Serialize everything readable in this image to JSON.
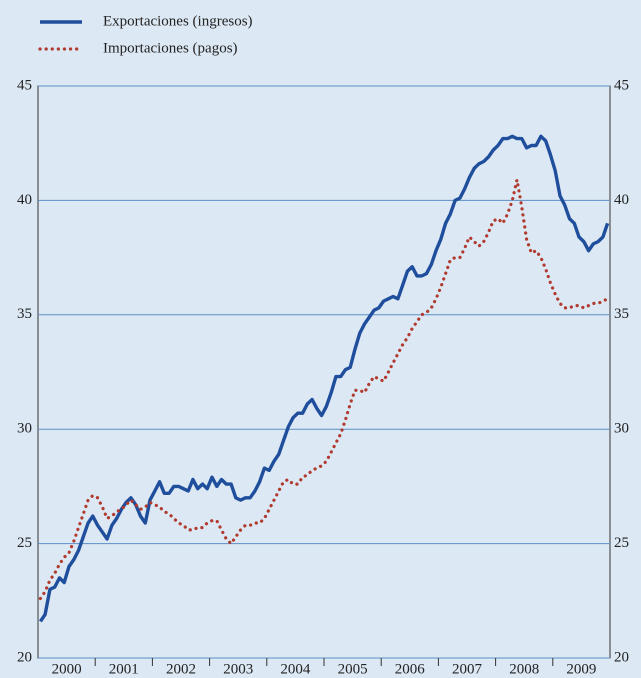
{
  "chart_data": {
    "type": "line",
    "categories": [
      "2000",
      "2001",
      "2002",
      "2003",
      "2004",
      "2005",
      "2006",
      "2007",
      "2008",
      "2009"
    ],
    "series": [
      {
        "name": "Exportaciones (ingresos)",
        "color": "#1f4e9c",
        "style": "solid",
        "values": [
          [
            21.6,
            21.9,
            23.0,
            23.1,
            23.5,
            23.3,
            24.0,
            24.3,
            24.7,
            25.3,
            25.9,
            26.2
          ],
          [
            25.8,
            25.5,
            25.2,
            25.8,
            26.1,
            26.5,
            26.8,
            27.0,
            26.7,
            26.2,
            25.9,
            26.9
          ],
          [
            27.3,
            27.7,
            27.2,
            27.2,
            27.5,
            27.5,
            27.4,
            27.3,
            27.8,
            27.4,
            27.6,
            27.4
          ],
          [
            27.9,
            27.5,
            27.8,
            27.6,
            27.6,
            27.0,
            26.9,
            27.0,
            27.0,
            27.3,
            27.7,
            28.3
          ],
          [
            28.2,
            28.6,
            28.9,
            29.5,
            30.1,
            30.5,
            30.7,
            30.7,
            31.1,
            31.3,
            30.9,
            30.6
          ],
          [
            31.0,
            31.6,
            32.3,
            32.3,
            32.6,
            32.7,
            33.5,
            34.2,
            34.6,
            34.9,
            35.2,
            35.3
          ],
          [
            35.6,
            35.7,
            35.8,
            35.7,
            36.3,
            36.9,
            37.1,
            36.7,
            36.7,
            36.8,
            37.2,
            37.8
          ],
          [
            38.3,
            39.0,
            39.4,
            40.0,
            40.1,
            40.5,
            41.0,
            41.4,
            41.6,
            41.7,
            41.9,
            42.2
          ],
          [
            42.4,
            42.7,
            42.7,
            42.8,
            42.7,
            42.7,
            42.3,
            42.4,
            42.4,
            42.8,
            42.6,
            42.0
          ],
          [
            41.3,
            40.2,
            39.8,
            39.2,
            39.0,
            38.4,
            38.2,
            37.8,
            38.1,
            38.2,
            38.4,
            39.0
          ]
        ]
      },
      {
        "name": "Importaciones (pagos)",
        "color": "#b03a2e",
        "style": "dotted",
        "values": [
          [
            22.6,
            22.9,
            23.4,
            23.7,
            24.1,
            24.4,
            24.6,
            25.1,
            25.7,
            26.3,
            26.9,
            27.1
          ],
          [
            27.0,
            26.6,
            26.1,
            26.2,
            26.4,
            26.5,
            26.7,
            26.9,
            26.7,
            26.5,
            26.6,
            26.8
          ],
          [
            26.7,
            26.6,
            26.4,
            26.3,
            26.1,
            25.9,
            25.8,
            25.6,
            25.6,
            25.7,
            25.7,
            25.9
          ],
          [
            26.0,
            26.0,
            25.6,
            25.2,
            25.0,
            25.3,
            25.6,
            25.8,
            25.8,
            25.9,
            25.9,
            26.1
          ],
          [
            26.5,
            26.9,
            27.3,
            27.7,
            27.8,
            27.6,
            27.6,
            27.9,
            28.0,
            28.2,
            28.3,
            28.4
          ],
          [
            28.6,
            29.0,
            29.4,
            29.8,
            30.4,
            31.1,
            31.7,
            31.7,
            31.6,
            32.0,
            32.3,
            32.2
          ],
          [
            32.1,
            32.5,
            32.9,
            33.3,
            33.7,
            34.0,
            34.4,
            34.7,
            35.0,
            35.1,
            35.3,
            35.7
          ],
          [
            36.2,
            36.8,
            37.4,
            37.5,
            37.5,
            37.9,
            38.4,
            38.2,
            38.0,
            38.2,
            38.6,
            39.1
          ],
          [
            39.2,
            39.0,
            39.4,
            40.0,
            40.9,
            39.7,
            38.3,
            37.7,
            37.8,
            37.5,
            37.0,
            36.4
          ],
          [
            35.9,
            35.5,
            35.3,
            35.3,
            35.4,
            35.4,
            35.3,
            35.4,
            35.5,
            35.5,
            35.6,
            35.7
          ]
        ]
      }
    ],
    "ylim": [
      20,
      45
    ],
    "yticks": [
      20,
      25,
      30,
      35,
      40,
      45
    ],
    "grid": true,
    "legend": "top-left"
  }
}
